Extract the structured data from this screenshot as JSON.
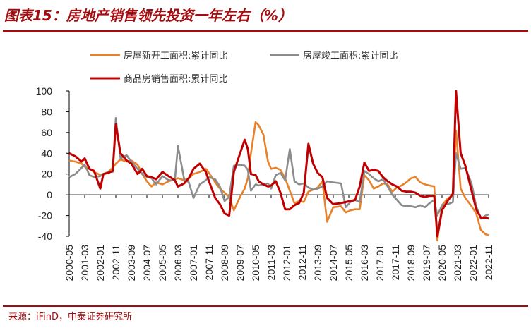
{
  "figure": {
    "title": "图表15：房地产销售领先投资一年左右（%）",
    "source": "来源：iFinD，中泰证券研究所"
  },
  "colors": {
    "brand": "#a10d10",
    "new_construction": "#e8822a",
    "completion": "#8c8c8c",
    "sales": "#c00000"
  },
  "chart_data": {
    "type": "line",
    "title": "",
    "xlabel": "",
    "ylabel": "",
    "ylim": [
      -40,
      100
    ],
    "yticks": [
      -40,
      -20,
      0,
      20,
      40,
      60,
      80,
      100
    ],
    "grid": false,
    "legend_position": "top",
    "x_start": "2000-05",
    "x_end": "2022-11",
    "x_ticks": [
      "2000-05",
      "2001-03",
      "2002-01",
      "2002-11",
      "2003-09",
      "2004-07",
      "2005-05",
      "2006-03",
      "2007-01",
      "2007-11",
      "2008-09",
      "2009-07",
      "2010-05",
      "2011-03",
      "2012-01",
      "2012-11",
      "2013-09",
      "2014-07",
      "2015-05",
      "2016-03",
      "2017-01",
      "2017-11",
      "2018-09",
      "2019-07",
      "2020-05",
      "2021-03",
      "2022-01",
      "2022-11"
    ],
    "series": [
      {
        "name": "房屋新开工面积:累计同比",
        "key": "new_construction",
        "points": [
          [
            "2000-05",
            33
          ],
          [
            "2000-09",
            32
          ],
          [
            "2001-01",
            30
          ],
          [
            "2001-03",
            27
          ],
          [
            "2001-06",
            25
          ],
          [
            "2001-09",
            22
          ],
          [
            "2002-01",
            19
          ],
          [
            "2002-03",
            20
          ],
          [
            "2002-06",
            22
          ],
          [
            "2002-09",
            26
          ],
          [
            "2002-11",
            30
          ],
          [
            "2003-02",
            34
          ],
          [
            "2003-06",
            32
          ],
          [
            "2003-09",
            33
          ],
          [
            "2004-01",
            29
          ],
          [
            "2004-04",
            20
          ],
          [
            "2004-07",
            13
          ],
          [
            "2004-10",
            8
          ],
          [
            "2005-01",
            12
          ],
          [
            "2005-05",
            10
          ],
          [
            "2005-09",
            13
          ],
          [
            "2006-01",
            15
          ],
          [
            "2006-03",
            16
          ],
          [
            "2006-07",
            14
          ],
          [
            "2006-10",
            16
          ],
          [
            "2007-01",
            20
          ],
          [
            "2007-05",
            22
          ],
          [
            "2007-09",
            25
          ],
          [
            "2007-11",
            21
          ],
          [
            "2008-03",
            12
          ],
          [
            "2008-06",
            6
          ],
          [
            "2008-09",
            2
          ],
          [
            "2008-12",
            -2
          ],
          [
            "2009-03",
            -15
          ],
          [
            "2009-07",
            -2
          ],
          [
            "2009-10",
            6
          ],
          [
            "2009-12",
            16
          ],
          [
            "2010-02",
            40
          ],
          [
            "2010-05",
            70
          ],
          [
            "2010-07",
            67
          ],
          [
            "2010-10",
            58
          ],
          [
            "2011-01",
            32
          ],
          [
            "2011-03",
            25
          ],
          [
            "2011-06",
            26
          ],
          [
            "2011-09",
            24
          ],
          [
            "2011-12",
            16
          ],
          [
            "2012-03",
            4
          ],
          [
            "2012-06",
            -8
          ],
          [
            "2012-09",
            -6
          ],
          [
            "2012-12",
            -7
          ],
          [
            "2013-03",
            3
          ],
          [
            "2013-06",
            5
          ],
          [
            "2013-09",
            7
          ],
          [
            "2013-12",
            13
          ],
          [
            "2014-03",
            -26
          ],
          [
            "2014-07",
            -12
          ],
          [
            "2014-12",
            -11
          ],
          [
            "2015-03",
            -17
          ],
          [
            "2015-06",
            -15
          ],
          [
            "2015-09",
            -14
          ],
          [
            "2015-12",
            -14
          ],
          [
            "2016-03",
            19
          ],
          [
            "2016-06",
            14
          ],
          [
            "2016-09",
            6
          ],
          [
            "2016-12",
            8
          ],
          [
            "2017-03",
            11
          ],
          [
            "2017-06",
            10
          ],
          [
            "2017-09",
            3
          ],
          [
            "2017-12",
            7
          ],
          [
            "2018-03",
            9
          ],
          [
            "2018-06",
            12
          ],
          [
            "2018-09",
            16
          ],
          [
            "2018-12",
            17
          ],
          [
            "2019-03",
            12
          ],
          [
            "2019-06",
            10
          ],
          [
            "2019-09",
            9
          ],
          [
            "2019-12",
            8
          ],
          [
            "2020-02",
            -44
          ],
          [
            "2020-05",
            -10
          ],
          [
            "2020-09",
            -3
          ],
          [
            "2020-12",
            -1
          ],
          [
            "2021-02",
            62
          ],
          [
            "2021-05",
            6
          ],
          [
            "2021-08",
            -3
          ],
          [
            "2021-12",
            -11
          ],
          [
            "2022-03",
            -18
          ],
          [
            "2022-06",
            -34
          ],
          [
            "2022-09",
            -38
          ],
          [
            "2022-11",
            -39
          ]
        ]
      },
      {
        "name": "房屋竣工面积:累计同比",
        "key": "completion",
        "points": [
          [
            "2000-05",
            17
          ],
          [
            "2000-09",
            20
          ],
          [
            "2001-01",
            26
          ],
          [
            "2001-03",
            29
          ],
          [
            "2001-06",
            19
          ],
          [
            "2001-09",
            17
          ],
          [
            "2002-01",
            18
          ],
          [
            "2002-03",
            20
          ],
          [
            "2002-06",
            22
          ],
          [
            "2002-09",
            22
          ],
          [
            "2002-11",
            74
          ],
          [
            "2003-02",
            35
          ],
          [
            "2003-06",
            38
          ],
          [
            "2003-09",
            32
          ],
          [
            "2004-01",
            25
          ],
          [
            "2004-04",
            20
          ],
          [
            "2004-07",
            17
          ],
          [
            "2004-10",
            16
          ],
          [
            "2005-01",
            10
          ],
          [
            "2005-05",
            18
          ],
          [
            "2005-09",
            14
          ],
          [
            "2006-01",
            14
          ],
          [
            "2006-03",
            47
          ],
          [
            "2006-07",
            15
          ],
          [
            "2006-10",
            12
          ],
          [
            "2007-01",
            -3
          ],
          [
            "2007-05",
            10
          ],
          [
            "2007-09",
            14
          ],
          [
            "2007-11",
            17
          ],
          [
            "2008-03",
            15
          ],
          [
            "2008-06",
            8
          ],
          [
            "2008-09",
            -6
          ],
          [
            "2008-12",
            -2
          ],
          [
            "2009-03",
            28
          ],
          [
            "2009-07",
            29
          ],
          [
            "2009-10",
            28
          ],
          [
            "2009-12",
            24
          ],
          [
            "2010-02",
            4
          ],
          [
            "2010-05",
            10
          ],
          [
            "2010-07",
            9
          ],
          [
            "2010-10",
            10
          ],
          [
            "2011-01",
            11
          ],
          [
            "2011-03",
            6
          ],
          [
            "2011-06",
            19
          ],
          [
            "2011-09",
            21
          ],
          [
            "2011-12",
            14
          ],
          [
            "2012-03",
            44
          ],
          [
            "2012-06",
            13
          ],
          [
            "2012-09",
            10
          ],
          [
            "2012-12",
            11
          ],
          [
            "2013-03",
            7
          ],
          [
            "2013-06",
            5
          ],
          [
            "2013-09",
            6
          ],
          [
            "2013-12",
            8
          ],
          [
            "2014-03",
            13
          ],
          [
            "2014-07",
            12
          ],
          [
            "2014-12",
            11
          ],
          [
            "2015-03",
            -12
          ],
          [
            "2015-06",
            -7
          ],
          [
            "2015-09",
            -5
          ],
          [
            "2015-12",
            -7
          ],
          [
            "2016-03",
            23
          ],
          [
            "2016-06",
            20
          ],
          [
            "2016-09",
            16
          ],
          [
            "2016-12",
            13
          ],
          [
            "2017-03",
            15
          ],
          [
            "2017-06",
            8
          ],
          [
            "2017-09",
            0
          ],
          [
            "2017-12",
            -5
          ],
          [
            "2018-03",
            -10
          ],
          [
            "2018-06",
            -11
          ],
          [
            "2018-09",
            -11
          ],
          [
            "2018-12",
            -12
          ],
          [
            "2019-03",
            -10
          ],
          [
            "2019-06",
            -12
          ],
          [
            "2019-09",
            -8
          ],
          [
            "2019-12",
            -5
          ],
          [
            "2020-02",
            -20
          ],
          [
            "2020-05",
            -10
          ],
          [
            "2020-09",
            -9
          ],
          [
            "2020-12",
            -7
          ],
          [
            "2021-02",
            40
          ],
          [
            "2021-05",
            25
          ],
          [
            "2021-08",
            26
          ],
          [
            "2021-12",
            11
          ],
          [
            "2022-03",
            -11
          ],
          [
            "2022-06",
            -23
          ],
          [
            "2022-09",
            -20
          ],
          [
            "2022-11",
            -19
          ]
        ]
      },
      {
        "name": "商品房销售面积:累计同比",
        "key": "sales",
        "points": [
          [
            "2000-05",
            40
          ],
          [
            "2000-09",
            37
          ],
          [
            "2001-01",
            32
          ],
          [
            "2001-03",
            35
          ],
          [
            "2001-06",
            25
          ],
          [
            "2001-09",
            23
          ],
          [
            "2002-01",
            6
          ],
          [
            "2002-03",
            20
          ],
          [
            "2002-06",
            21
          ],
          [
            "2002-09",
            23
          ],
          [
            "2002-11",
            68
          ],
          [
            "2003-02",
            40
          ],
          [
            "2003-06",
            33
          ],
          [
            "2003-09",
            30
          ],
          [
            "2004-01",
            20
          ],
          [
            "2004-04",
            25
          ],
          [
            "2004-07",
            18
          ],
          [
            "2004-10",
            17
          ],
          [
            "2005-01",
            15
          ],
          [
            "2005-05",
            22
          ],
          [
            "2005-09",
            18
          ],
          [
            "2006-01",
            14
          ],
          [
            "2006-03",
            8
          ],
          [
            "2006-07",
            11
          ],
          [
            "2006-10",
            16
          ],
          [
            "2007-01",
            25
          ],
          [
            "2007-05",
            30
          ],
          [
            "2007-09",
            22
          ],
          [
            "2007-11",
            13
          ],
          [
            "2008-03",
            -3
          ],
          [
            "2008-06",
            -9
          ],
          [
            "2008-09",
            -18
          ],
          [
            "2008-12",
            -20
          ],
          [
            "2009-03",
            22
          ],
          [
            "2009-07",
            40
          ],
          [
            "2009-10",
            53
          ],
          [
            "2009-12",
            44
          ],
          [
            "2010-02",
            20
          ],
          [
            "2010-05",
            19
          ],
          [
            "2010-07",
            13
          ],
          [
            "2010-10",
            10
          ],
          [
            "2011-01",
            8
          ],
          [
            "2011-03",
            9
          ],
          [
            "2011-06",
            13
          ],
          [
            "2011-09",
            2
          ],
          [
            "2011-12",
            -14
          ],
          [
            "2012-03",
            -14
          ],
          [
            "2012-06",
            -10
          ],
          [
            "2012-09",
            -8
          ],
          [
            "2012-12",
            2
          ],
          [
            "2013-03",
            49
          ],
          [
            "2013-06",
            30
          ],
          [
            "2013-09",
            21
          ],
          [
            "2013-12",
            17
          ],
          [
            "2014-03",
            -3
          ],
          [
            "2014-07",
            -9
          ],
          [
            "2014-12",
            -8
          ],
          [
            "2015-03",
            -7
          ],
          [
            "2015-06",
            -6
          ],
          [
            "2015-09",
            -5
          ],
          [
            "2015-12",
            8
          ],
          [
            "2016-03",
            31
          ],
          [
            "2016-06",
            23
          ],
          [
            "2016-09",
            24
          ],
          [
            "2016-12",
            23
          ],
          [
            "2017-03",
            17
          ],
          [
            "2017-06",
            13
          ],
          [
            "2017-09",
            10
          ],
          [
            "2017-12",
            8
          ],
          [
            "2018-03",
            4
          ],
          [
            "2018-06",
            3
          ],
          [
            "2018-09",
            3
          ],
          [
            "2018-12",
            2
          ],
          [
            "2019-03",
            -1
          ],
          [
            "2019-06",
            -2
          ],
          [
            "2019-09",
            -1
          ],
          [
            "2019-12",
            -1
          ],
          [
            "2020-02",
            -40
          ],
          [
            "2020-05",
            -15
          ],
          [
            "2020-09",
            -5
          ],
          [
            "2020-12",
            1
          ],
          [
            "2021-02",
            100
          ],
          [
            "2021-05",
            40
          ],
          [
            "2021-08",
            28
          ],
          [
            "2021-12",
            4
          ],
          [
            "2022-03",
            -14
          ],
          [
            "2022-06",
            -22
          ],
          [
            "2022-09",
            -22
          ],
          [
            "2022-11",
            -23
          ]
        ]
      }
    ]
  }
}
